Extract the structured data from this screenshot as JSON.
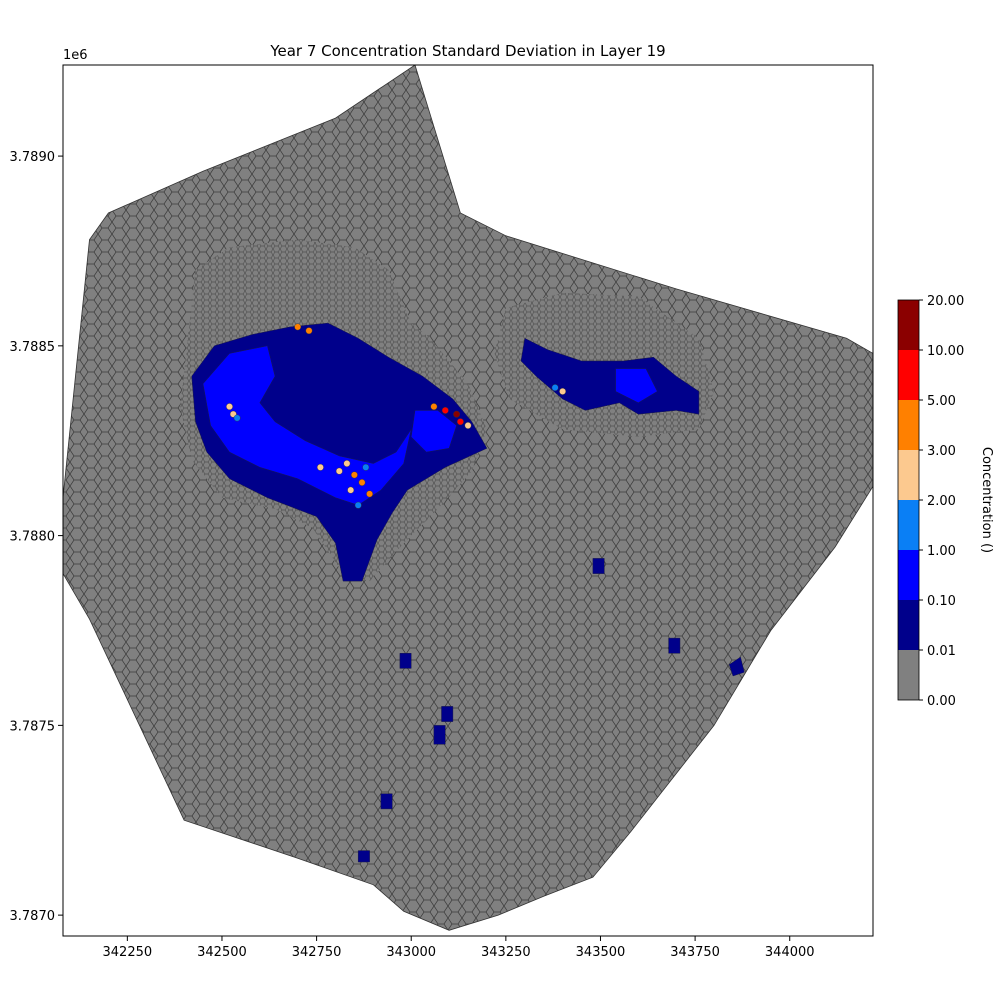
{
  "chart_data": {
    "type": "heatmap",
    "title": "Year 7 Concentration Standard Deviation in Layer 19",
    "xlabel": "",
    "ylabel": "",
    "y_offset_label": "1e6",
    "xlim": [
      342080,
      344220
    ],
    "ylim": [
      3786945,
      3789240
    ],
    "x_ticks": [
      342250,
      342500,
      342750,
      343000,
      343250,
      343500,
      343750,
      344000
    ],
    "x_tick_labels": [
      "342250",
      "342500",
      "342750",
      "343000",
      "343250",
      "343500",
      "343750",
      "344000"
    ],
    "y_ticks": [
      3787000,
      3787500,
      3788000,
      3788500,
      3789000
    ],
    "y_tick_labels": [
      "3.7870",
      "3.7875",
      "3.7880",
      "3.7885",
      "3.7890"
    ],
    "grid": false,
    "colorbar": {
      "label": "Concentration ()",
      "boundaries": [
        0.0,
        0.01,
        0.1,
        1.0,
        2.0,
        3.0,
        5.0,
        10.0,
        20.0
      ],
      "boundary_labels": [
        "0.00",
        "0.01",
        "0.10",
        "1.00",
        "2.00",
        "3.00",
        "5.00",
        "10.00",
        "20.00"
      ],
      "colors": [
        "#808080",
        "#00008b",
        "#0000ff",
        "#0a7ff5",
        "#fcc98f",
        "#ff8000",
        "#ff0000",
        "#8b0000"
      ]
    },
    "domain_outline": [
      [
        342080,
        3788100
      ],
      [
        342150,
        3788780
      ],
      [
        342200,
        3788850
      ],
      [
        342450,
        3788960
      ],
      [
        342800,
        3789100
      ],
      [
        343010,
        3789240
      ],
      [
        343130,
        3788850
      ],
      [
        343250,
        3788790
      ],
      [
        343700,
        3788650
      ],
      [
        344150,
        3788520
      ],
      [
        344220,
        3788480
      ],
      [
        344220,
        3788130
      ],
      [
        344120,
        3787970
      ],
      [
        343950,
        3787750
      ],
      [
        343800,
        3787500
      ],
      [
        343580,
        3787220
      ],
      [
        343480,
        3787100
      ],
      [
        343350,
        3787050
      ],
      [
        343230,
        3787000
      ],
      [
        343100,
        3786960
      ],
      [
        342980,
        3787010
      ],
      [
        342900,
        3787080
      ],
      [
        342700,
        3787150
      ],
      [
        342400,
        3787250
      ],
      [
        342150,
        3787780
      ],
      [
        342080,
        3787900
      ]
    ],
    "regions": [
      {
        "level": 1,
        "polygon": [
          [
            342420,
            3788420
          ],
          [
            342480,
            3788500
          ],
          [
            342580,
            3788530
          ],
          [
            342680,
            3788550
          ],
          [
            342780,
            3788560
          ],
          [
            342860,
            3788520
          ],
          [
            342940,
            3788470
          ],
          [
            343030,
            3788420
          ],
          [
            343110,
            3788360
          ],
          [
            343160,
            3788300
          ],
          [
            343200,
            3788230
          ],
          [
            343090,
            3788180
          ],
          [
            342990,
            3788120
          ],
          [
            342950,
            3788060
          ],
          [
            342910,
            3787990
          ],
          [
            342870,
            3787880
          ],
          [
            342820,
            3787880
          ],
          [
            342800,
            3787980
          ],
          [
            342750,
            3788050
          ],
          [
            342620,
            3788100
          ],
          [
            342520,
            3788150
          ],
          [
            342460,
            3788220
          ],
          [
            342430,
            3788300
          ]
        ]
      },
      {
        "level": 2,
        "polygon": [
          [
            342450,
            3788400
          ],
          [
            342520,
            3788480
          ],
          [
            342620,
            3788500
          ],
          [
            342640,
            3788420
          ],
          [
            342600,
            3788350
          ],
          [
            342640,
            3788300
          ],
          [
            342720,
            3788250
          ],
          [
            342810,
            3788210
          ],
          [
            342900,
            3788190
          ],
          [
            342960,
            3788220
          ],
          [
            343000,
            3788280
          ],
          [
            342980,
            3788190
          ],
          [
            342920,
            3788120
          ],
          [
            342860,
            3788080
          ],
          [
            342800,
            3788100
          ],
          [
            342700,
            3788150
          ],
          [
            342600,
            3788180
          ],
          [
            342520,
            3788220
          ],
          [
            342470,
            3788290
          ]
        ]
      },
      {
        "level": 2,
        "polygon": [
          [
            343010,
            3788330
          ],
          [
            343070,
            3788330
          ],
          [
            343120,
            3788290
          ],
          [
            343100,
            3788230
          ],
          [
            343040,
            3788220
          ],
          [
            343000,
            3788260
          ]
        ]
      },
      {
        "level": 1,
        "polygon": [
          [
            343300,
            3788520
          ],
          [
            343360,
            3788490
          ],
          [
            343450,
            3788460
          ],
          [
            343560,
            3788460
          ],
          [
            343640,
            3788470
          ],
          [
            343700,
            3788420
          ],
          [
            343760,
            3788380
          ],
          [
            343760,
            3788320
          ],
          [
            343700,
            3788330
          ],
          [
            343600,
            3788320
          ],
          [
            343550,
            3788350
          ],
          [
            343460,
            3788330
          ],
          [
            343400,
            3788360
          ],
          [
            343330,
            3788420
          ],
          [
            343290,
            3788460
          ]
        ]
      },
      {
        "level": 2,
        "polygon": [
          [
            343540,
            3788440
          ],
          [
            343620,
            3788440
          ],
          [
            343650,
            3788380
          ],
          [
            343600,
            3788350
          ],
          [
            343540,
            3788380
          ]
        ]
      },
      {
        "level": 1,
        "polygon": [
          [
            343480,
            3787940
          ],
          [
            343510,
            3787940
          ],
          [
            343510,
            3787900
          ],
          [
            343480,
            3787900
          ]
        ]
      },
      {
        "level": 1,
        "polygon": [
          [
            342970,
            3787690
          ],
          [
            343000,
            3787690
          ],
          [
            343000,
            3787650
          ],
          [
            342970,
            3787650
          ]
        ]
      },
      {
        "level": 1,
        "polygon": [
          [
            343680,
            3787730
          ],
          [
            343710,
            3787730
          ],
          [
            343710,
            3787690
          ],
          [
            343680,
            3787690
          ]
        ]
      },
      {
        "level": 1,
        "polygon": [
          [
            343080,
            3787550
          ],
          [
            343110,
            3787550
          ],
          [
            343110,
            3787510
          ],
          [
            343080,
            3787510
          ]
        ]
      },
      {
        "level": 1,
        "polygon": [
          [
            343060,
            3787500
          ],
          [
            343090,
            3787500
          ],
          [
            343090,
            3787450
          ],
          [
            343060,
            3787450
          ]
        ]
      },
      {
        "level": 1,
        "polygon": [
          [
            342920,
            3787320
          ],
          [
            342950,
            3787320
          ],
          [
            342950,
            3787280
          ],
          [
            342920,
            3787280
          ]
        ]
      },
      {
        "level": 1,
        "polygon": [
          [
            342860,
            3787170
          ],
          [
            342890,
            3787170
          ],
          [
            342890,
            3787140
          ],
          [
            342860,
            3787140
          ]
        ]
      },
      {
        "level": 1,
        "polygon": [
          [
            343840,
            3787660
          ],
          [
            343870,
            3787680
          ],
          [
            343880,
            3787640
          ],
          [
            343850,
            3787630
          ]
        ]
      }
    ],
    "hotspots": [
      {
        "x": 342830,
        "y": 3788190,
        "level": 4
      },
      {
        "x": 342850,
        "y": 3788160,
        "level": 5
      },
      {
        "x": 342870,
        "y": 3788140,
        "level": 5
      },
      {
        "x": 342810,
        "y": 3788170,
        "level": 4
      },
      {
        "x": 342890,
        "y": 3788110,
        "level": 5
      },
      {
        "x": 342840,
        "y": 3788120,
        "level": 4
      },
      {
        "x": 342880,
        "y": 3788180,
        "level": 3
      },
      {
        "x": 342860,
        "y": 3788080,
        "level": 3
      },
      {
        "x": 342760,
        "y": 3788180,
        "level": 4
      },
      {
        "x": 343090,
        "y": 3788330,
        "level": 6
      },
      {
        "x": 343120,
        "y": 3788320,
        "level": 7
      },
      {
        "x": 343130,
        "y": 3788300,
        "level": 6
      },
      {
        "x": 343060,
        "y": 3788340,
        "level": 5
      },
      {
        "x": 343150,
        "y": 3788290,
        "level": 4
      },
      {
        "x": 342700,
        "y": 3788550,
        "level": 5
      },
      {
        "x": 342730,
        "y": 3788540,
        "level": 5
      },
      {
        "x": 342520,
        "y": 3788340,
        "level": 4
      },
      {
        "x": 342530,
        "y": 3788320,
        "level": 4
      },
      {
        "x": 342540,
        "y": 3788310,
        "level": 3
      },
      {
        "x": 343400,
        "y": 3788380,
        "level": 4
      },
      {
        "x": 343380,
        "y": 3788390,
        "level": 3
      }
    ]
  }
}
